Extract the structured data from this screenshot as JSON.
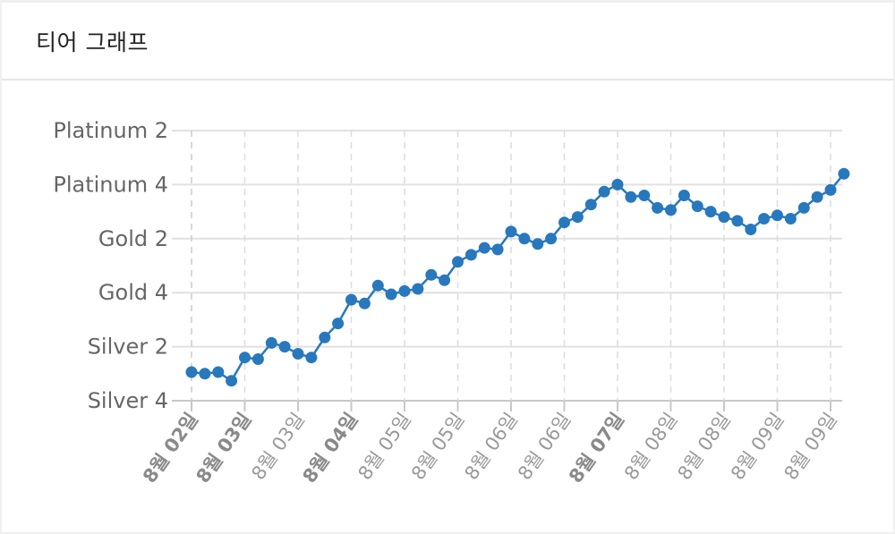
{
  "header": {
    "title": "티어 그래프"
  },
  "chart_data": {
    "type": "line",
    "title": "",
    "xlabel": "",
    "ylabel": "",
    "y_tick_labels": [
      "Silver 4",
      "Silver 2",
      "Gold 4",
      "Gold 2",
      "Platinum 4",
      "Platinum 2"
    ],
    "ylim": [
      0,
      5
    ],
    "x_tick_labels": [
      {
        "label": "8월 02일",
        "major": true
      },
      {
        "label": "8월 03일",
        "major": true
      },
      {
        "label": "8월 03일",
        "major": false
      },
      {
        "label": "8월 04일",
        "major": true
      },
      {
        "label": "8월 05일",
        "major": false
      },
      {
        "label": "8월 05일",
        "major": false
      },
      {
        "label": "8월 06일",
        "major": false
      },
      {
        "label": "8월 06일",
        "major": false
      },
      {
        "label": "8월 07일",
        "major": true
      },
      {
        "label": "8월 08일",
        "major": false
      },
      {
        "label": "8월 08일",
        "major": false
      },
      {
        "label": "8월 09일",
        "major": false
      },
      {
        "label": "8월 09일",
        "major": false
      }
    ],
    "points_per_tick": 4,
    "series": [
      {
        "values": [
          0.53,
          0.5,
          0.53,
          0.37,
          0.8,
          0.77,
          1.07,
          1.0,
          0.87,
          0.8,
          1.17,
          1.43,
          1.87,
          1.8,
          2.13,
          1.97,
          2.03,
          2.07,
          2.33,
          2.23,
          2.57,
          2.7,
          2.83,
          2.8,
          3.13,
          3.0,
          2.9,
          3.0,
          3.3,
          3.4,
          3.63,
          3.87,
          4.0,
          3.77,
          3.8,
          3.57,
          3.53,
          3.8,
          3.6,
          3.5,
          3.4,
          3.33,
          3.17,
          3.37,
          3.43,
          3.37,
          3.57,
          3.77,
          3.9,
          4.2
        ]
      }
    ],
    "line_color": "#2878be",
    "grid": true
  }
}
